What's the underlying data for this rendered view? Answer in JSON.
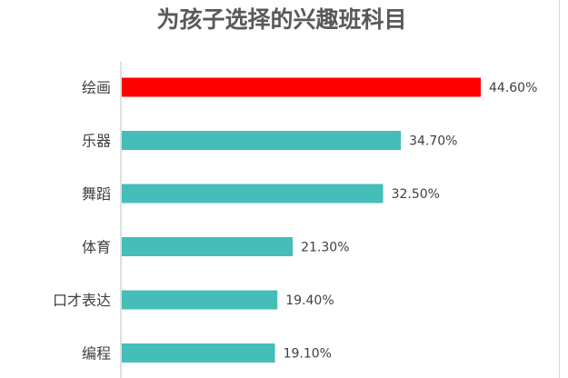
{
  "chart_data": {
    "type": "bar",
    "orientation": "horizontal",
    "title": "为孩子选择的兴趣班科目",
    "categories": [
      "绘画",
      "乐器",
      "舞蹈",
      "体育",
      "口才表达",
      "编程"
    ],
    "values": [
      44.6,
      34.7,
      32.5,
      21.3,
      19.4,
      19.1
    ],
    "value_labels": [
      "44.60%",
      "34.70%",
      "32.50%",
      "21.30%",
      "19.40%",
      "19.10%"
    ],
    "unit": "%",
    "xlim": [
      0,
      50
    ],
    "grid": false,
    "legend": "none",
    "colors": {
      "highlight": "#ff0000",
      "bar": "#45bdb8",
      "axis": "#bfbfbf",
      "title": "#595959",
      "text": "#404040"
    },
    "highlight_index": 0
  }
}
